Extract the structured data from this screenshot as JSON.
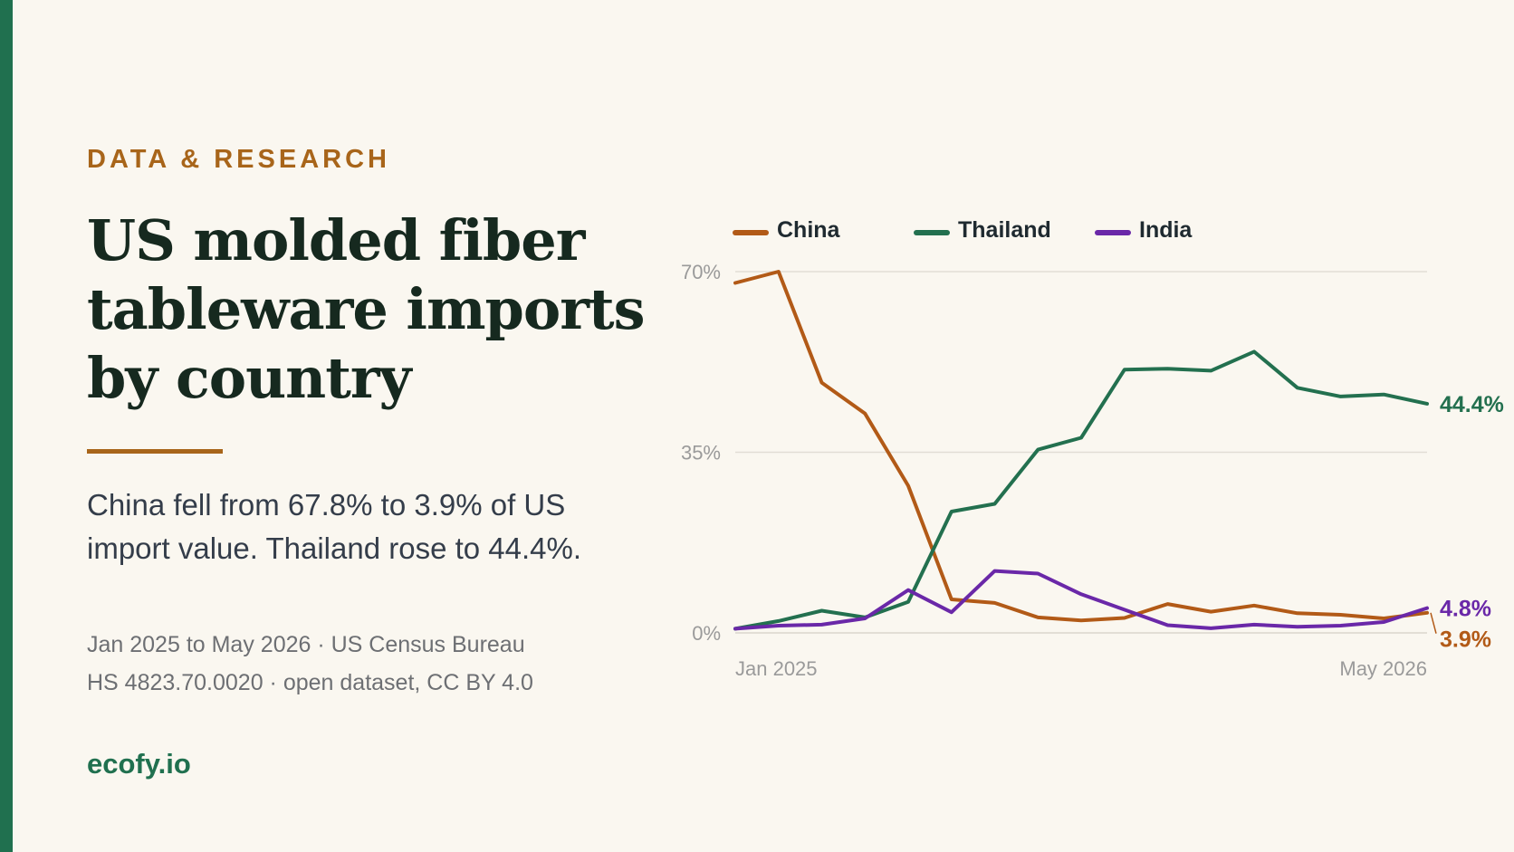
{
  "eyebrow": "DATA & RESEARCH",
  "title": "US molded fiber tableware imports by country",
  "subtitle": "China fell from 67.8% to 3.9% of US import value. Thailand rose to 44.4%.",
  "source_lines": [
    "Jan 2025 to May 2026 · US Census Bureau",
    "HS 4823.70.0020 · open dataset, CC BY 4.0"
  ],
  "brand": "ecofy.io",
  "colors": {
    "accent": "#20704f",
    "highlight": "#a8651a",
    "china": "#b25a17",
    "thailand": "#23704f",
    "india": "#6a28a8"
  },
  "chart_data": {
    "type": "line",
    "title": "",
    "xlabel": "",
    "ylabel": "",
    "y_unit": "%",
    "ylim": [
      0,
      70
    ],
    "yticks": [
      {
        "value": 0,
        "label": "0%"
      },
      {
        "value": 35,
        "label": "35%"
      },
      {
        "value": 70,
        "label": "70%"
      }
    ],
    "x_tick_labels": [
      "Jan 2025",
      "May 2026"
    ],
    "grid": true,
    "legend_position": "top-left",
    "x": [
      "2025-01",
      "2025-02",
      "2025-03",
      "2025-04",
      "2025-05",
      "2025-06",
      "2025-07",
      "2025-08",
      "2025-09",
      "2025-10",
      "2025-11",
      "2025-12",
      "2026-01",
      "2026-02",
      "2026-03",
      "2026-04",
      "2026-05"
    ],
    "series": [
      {
        "name": "China",
        "color": "#b25a17",
        "end_label": "3.9%",
        "values": [
          67.8,
          70.0,
          48.5,
          42.5,
          28.5,
          6.5,
          5.8,
          3.0,
          2.4,
          2.9,
          5.6,
          4.1,
          5.3,
          3.8,
          3.5,
          2.8,
          3.9
        ]
      },
      {
        "name": "Thailand",
        "color": "#23704f",
        "end_label": "44.4%",
        "values": [
          0.8,
          2.3,
          4.3,
          3.0,
          6.0,
          23.5,
          25.0,
          35.5,
          37.8,
          51.0,
          51.2,
          50.8,
          54.5,
          47.5,
          45.8,
          46.2,
          44.4
        ]
      },
      {
        "name": "India",
        "color": "#6a28a8",
        "end_label": "4.8%",
        "values": [
          0.8,
          1.4,
          1.6,
          2.8,
          8.3,
          4.0,
          12.0,
          11.5,
          7.5,
          4.5,
          1.5,
          0.9,
          1.6,
          1.2,
          1.4,
          2.1,
          4.8
        ]
      }
    ]
  }
}
